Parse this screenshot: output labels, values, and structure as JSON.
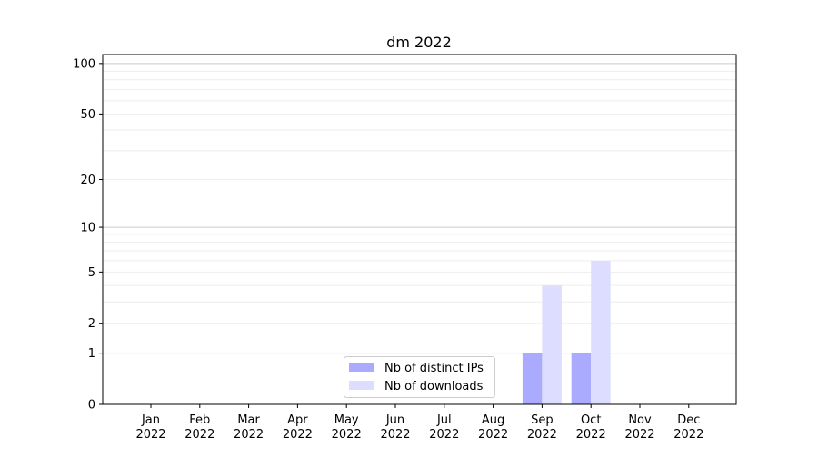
{
  "chart_data": {
    "type": "bar",
    "title": "dm 2022",
    "xlabel": "",
    "ylabel": "",
    "yscale": "log(1+y)",
    "ylim": [
      0,
      113
    ],
    "yticks": [
      0,
      1,
      2,
      5,
      10,
      20,
      50,
      100
    ],
    "grid": true,
    "legend_placement": "lower-center",
    "categories": [
      "Jan\n2022",
      "Feb\n2022",
      "Mar\n2022",
      "Apr\n2022",
      "May\n2022",
      "Jun\n2022",
      "Jul\n2022",
      "Aug\n2022",
      "Sep\n2022",
      "Oct\n2022",
      "Nov\n2022",
      "Dec\n2022"
    ],
    "series": [
      {
        "name": "Nb of distinct IPs",
        "color": "#aaaaff",
        "values": [
          0,
          0,
          0,
          0,
          0,
          0,
          0,
          0,
          1,
          1,
          0,
          0
        ]
      },
      {
        "name": "Nb of downloads",
        "color": "#ddddff",
        "values": [
          0,
          0,
          0,
          0,
          0,
          0,
          0,
          0,
          4,
          6,
          0,
          0
        ]
      }
    ]
  }
}
